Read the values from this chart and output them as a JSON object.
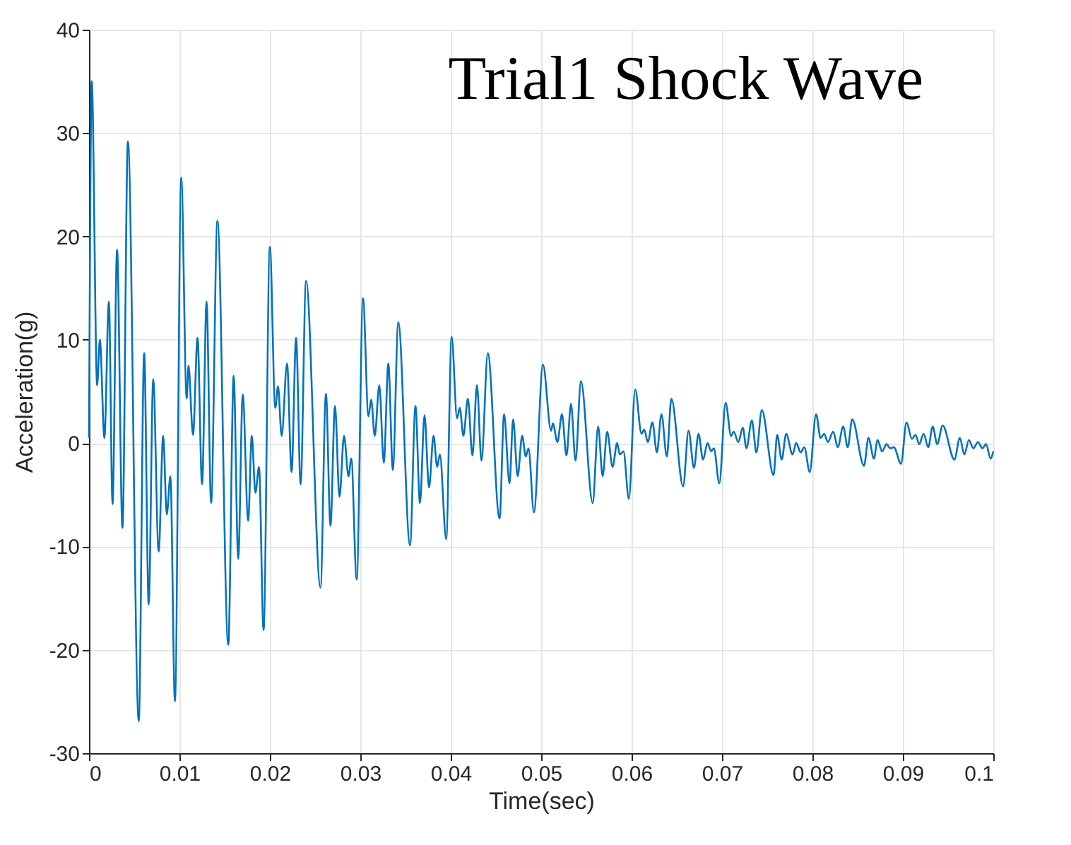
{
  "chart_data": {
    "type": "line",
    "title": "Trial1 Shock Wave",
    "xlabel": "Time(sec)",
    "ylabel": "Acceleration(g)",
    "xlim": [
      0,
      0.1
    ],
    "xticks": [
      0,
      0.01,
      0.02,
      0.03,
      0.04,
      0.05,
      0.06,
      0.07,
      0.08,
      0.09,
      0.1
    ],
    "ylim": [
      -30,
      40
    ],
    "yticks": [
      -30,
      -20,
      -10,
      0,
      10,
      20,
      30,
      40
    ],
    "grid": true,
    "marker": "none",
    "line_style": "solid",
    "series": [
      {
        "color": "#0072bd",
        "x": [
          0,
          0.0003,
          0.0009,
          0.0012,
          0.0017,
          0.0022,
          0.0026,
          0.0031,
          0.0037,
          0.0043,
          0.0055,
          0.0061,
          0.0066,
          0.0071,
          0.0077,
          0.0082,
          0.0086,
          0.009,
          0.0095,
          0.0102,
          0.0108,
          0.011,
          0.0115,
          0.012,
          0.0125,
          0.013,
          0.0135,
          0.0142,
          0.0154,
          0.016,
          0.0165,
          0.017,
          0.0176,
          0.018,
          0.0184,
          0.0188,
          0.0193,
          0.02,
          0.0206,
          0.0209,
          0.0213,
          0.0219,
          0.0224,
          0.0229,
          0.0234,
          0.024,
          0.0256,
          0.0262,
          0.0267,
          0.0272,
          0.0277,
          0.0282,
          0.0287,
          0.029,
          0.0296,
          0.0303,
          0.0309,
          0.0312,
          0.0316,
          0.0321,
          0.0326,
          0.0331,
          0.0336,
          0.0342,
          0.0355,
          0.0361,
          0.0366,
          0.0371,
          0.0376,
          0.0381,
          0.0385,
          0.0388,
          0.0395,
          0.0401,
          0.0407,
          0.041,
          0.0414,
          0.0419,
          0.0424,
          0.0429,
          0.0434,
          0.0441,
          0.0454,
          0.0459,
          0.0465,
          0.0469,
          0.0474,
          0.0479,
          0.0483,
          0.0486,
          0.0492,
          0.0502,
          0.0511,
          0.0513,
          0.0518,
          0.0523,
          0.0528,
          0.0533,
          0.0538,
          0.0544,
          0.0557,
          0.0563,
          0.0568,
          0.0573,
          0.0579,
          0.0584,
          0.0587,
          0.0591,
          0.0597,
          0.0604,
          0.0611,
          0.0614,
          0.0618,
          0.0623,
          0.0628,
          0.0633,
          0.0639,
          0.0644,
          0.0657,
          0.0663,
          0.0669,
          0.0674,
          0.0679,
          0.0684,
          0.0688,
          0.0691,
          0.0697,
          0.0704,
          0.071,
          0.0713,
          0.0718,
          0.0723,
          0.0727,
          0.0733,
          0.0738,
          0.0744,
          0.0757,
          0.0761,
          0.0766,
          0.0771,
          0.0778,
          0.0782,
          0.0787,
          0.0791,
          0.0797,
          0.0804,
          0.0809,
          0.0813,
          0.0817,
          0.0823,
          0.0828,
          0.0834,
          0.0839,
          0.0844,
          0.0857,
          0.0862,
          0.0868,
          0.0872,
          0.0877,
          0.0882,
          0.0886,
          0.089,
          0.0898,
          0.0904,
          0.091,
          0.0914,
          0.0918,
          0.0923,
          0.0928,
          0.0933,
          0.0938,
          0.0944,
          0.0957,
          0.0963,
          0.0968,
          0.0973,
          0.0978,
          0.0983,
          0.0988,
          0.0992,
          0.0997,
          0.1
        ],
        "values": [
          0.5,
          35,
          5.6,
          10,
          0.5,
          13.7,
          -5.9,
          18.7,
          -8.2,
          29.2,
          -26.9,
          8.7,
          -15.6,
          6.2,
          -10.5,
          0.7,
          -6.9,
          -3.2,
          -25,
          25.7,
          4.3,
          7.5,
          0.8,
          10.2,
          -4,
          13.7,
          -5.8,
          21.5,
          -19.5,
          6.5,
          -11.2,
          4.7,
          -7.5,
          0.7,
          -4.8,
          -2.3,
          -18.1,
          19,
          3.4,
          5.5,
          0.7,
          7.7,
          -2.8,
          10.2,
          -4,
          15.7,
          -14,
          4.8,
          -8,
          3.6,
          -5.2,
          0.7,
          -3.2,
          -1.5,
          -13.2,
          14,
          2.6,
          4.2,
          0.7,
          5.6,
          -1.9,
          7.7,
          -2.6,
          11.7,
          -9.9,
          3.6,
          -5.8,
          2.7,
          -4.3,
          0.7,
          -2.3,
          -1.1,
          -9.3,
          10.3,
          2.4,
          3.4,
          0.7,
          4.3,
          -1.2,
          5.6,
          -1.7,
          8.7,
          -7.3,
          2.8,
          -3.9,
          2.3,
          -3.2,
          0.7,
          -1.3,
          -0.5,
          -6.7,
          7.6,
          1.2,
          1.9,
          0.1,
          2.8,
          -1.2,
          3.8,
          -1.7,
          6,
          -5.8,
          1.6,
          -3.2,
          1.1,
          -2.3,
          0,
          -1.1,
          -0.8,
          -5.4,
          5.2,
          0.9,
          1.3,
          0.1,
          2,
          -0.9,
          2.8,
          -1.3,
          4.3,
          -4.2,
          1.2,
          -2.4,
          0.9,
          -1.6,
          0,
          -0.8,
          -0.5,
          -3.9,
          3.9,
          0.7,
          1.1,
          0.1,
          1.5,
          -0.5,
          2.2,
          -0.9,
          3.2,
          -3.1,
          0.8,
          -1.6,
          0.9,
          -1.1,
          0,
          -0.9,
          -0.4,
          -2.8,
          2.8,
          0.5,
          0.9,
          0.1,
          1.1,
          -0.4,
          1.6,
          -0.4,
          2.3,
          -2.2,
          0.5,
          -1.5,
          0.3,
          -0.8,
          -0.1,
          -0.5,
          -0.4,
          -2,
          2,
          0.4,
          0.8,
          -0.1,
          0.9,
          -0.4,
          1.6,
          -0.1,
          1.7,
          -1.6,
          0.5,
          -1.1,
          0.3,
          -0.5,
          0.1,
          -0.5,
          -0.1,
          -1.5,
          -0.8
        ]
      }
    ]
  }
}
